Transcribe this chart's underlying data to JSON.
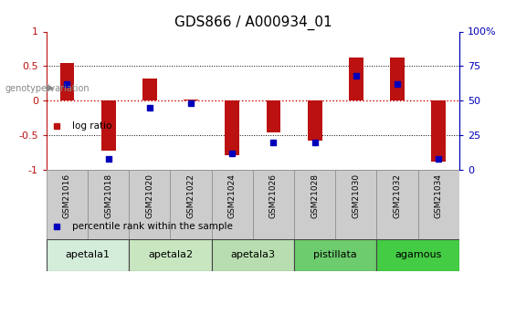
{
  "title": "GDS866 / A000934_01",
  "samples": [
    "GSM21016",
    "GSM21018",
    "GSM21020",
    "GSM21022",
    "GSM21024",
    "GSM21026",
    "GSM21028",
    "GSM21030",
    "GSM21032",
    "GSM21034"
  ],
  "log_ratio": [
    0.55,
    -0.72,
    0.32,
    0.02,
    -0.78,
    -0.45,
    -0.58,
    0.62,
    0.62,
    -0.88
  ],
  "percentile_rank": [
    62,
    8,
    45,
    48,
    12,
    20,
    20,
    68,
    62,
    8
  ],
  "groups": [
    {
      "name": "apetala1",
      "indices": [
        0,
        1
      ],
      "color": "#d4edda"
    },
    {
      "name": "apetala2",
      "indices": [
        2,
        3
      ],
      "color": "#c8e6c0"
    },
    {
      "name": "apetala3",
      "indices": [
        4,
        5
      ],
      "color": "#b8ddb0"
    },
    {
      "name": "pistillata",
      "indices": [
        6,
        7
      ],
      "color": "#6dcc6d"
    },
    {
      "name": "agamous",
      "indices": [
        8,
        9
      ],
      "color": "#44cc44"
    }
  ],
  "ylim": [
    -1,
    1
  ],
  "y2lim": [
    0,
    100
  ],
  "yticks": [
    -1,
    -0.5,
    0,
    0.5,
    1
  ],
  "y2ticks": [
    0,
    25,
    50,
    75,
    100
  ],
  "bar_color": "#bb1111",
  "dot_color": "#0000bb",
  "hline_color": "#cc0000",
  "dotted_color": "#000000",
  "background_color": "#ffffff",
  "bar_width": 0.35,
  "title_fontsize": 11
}
